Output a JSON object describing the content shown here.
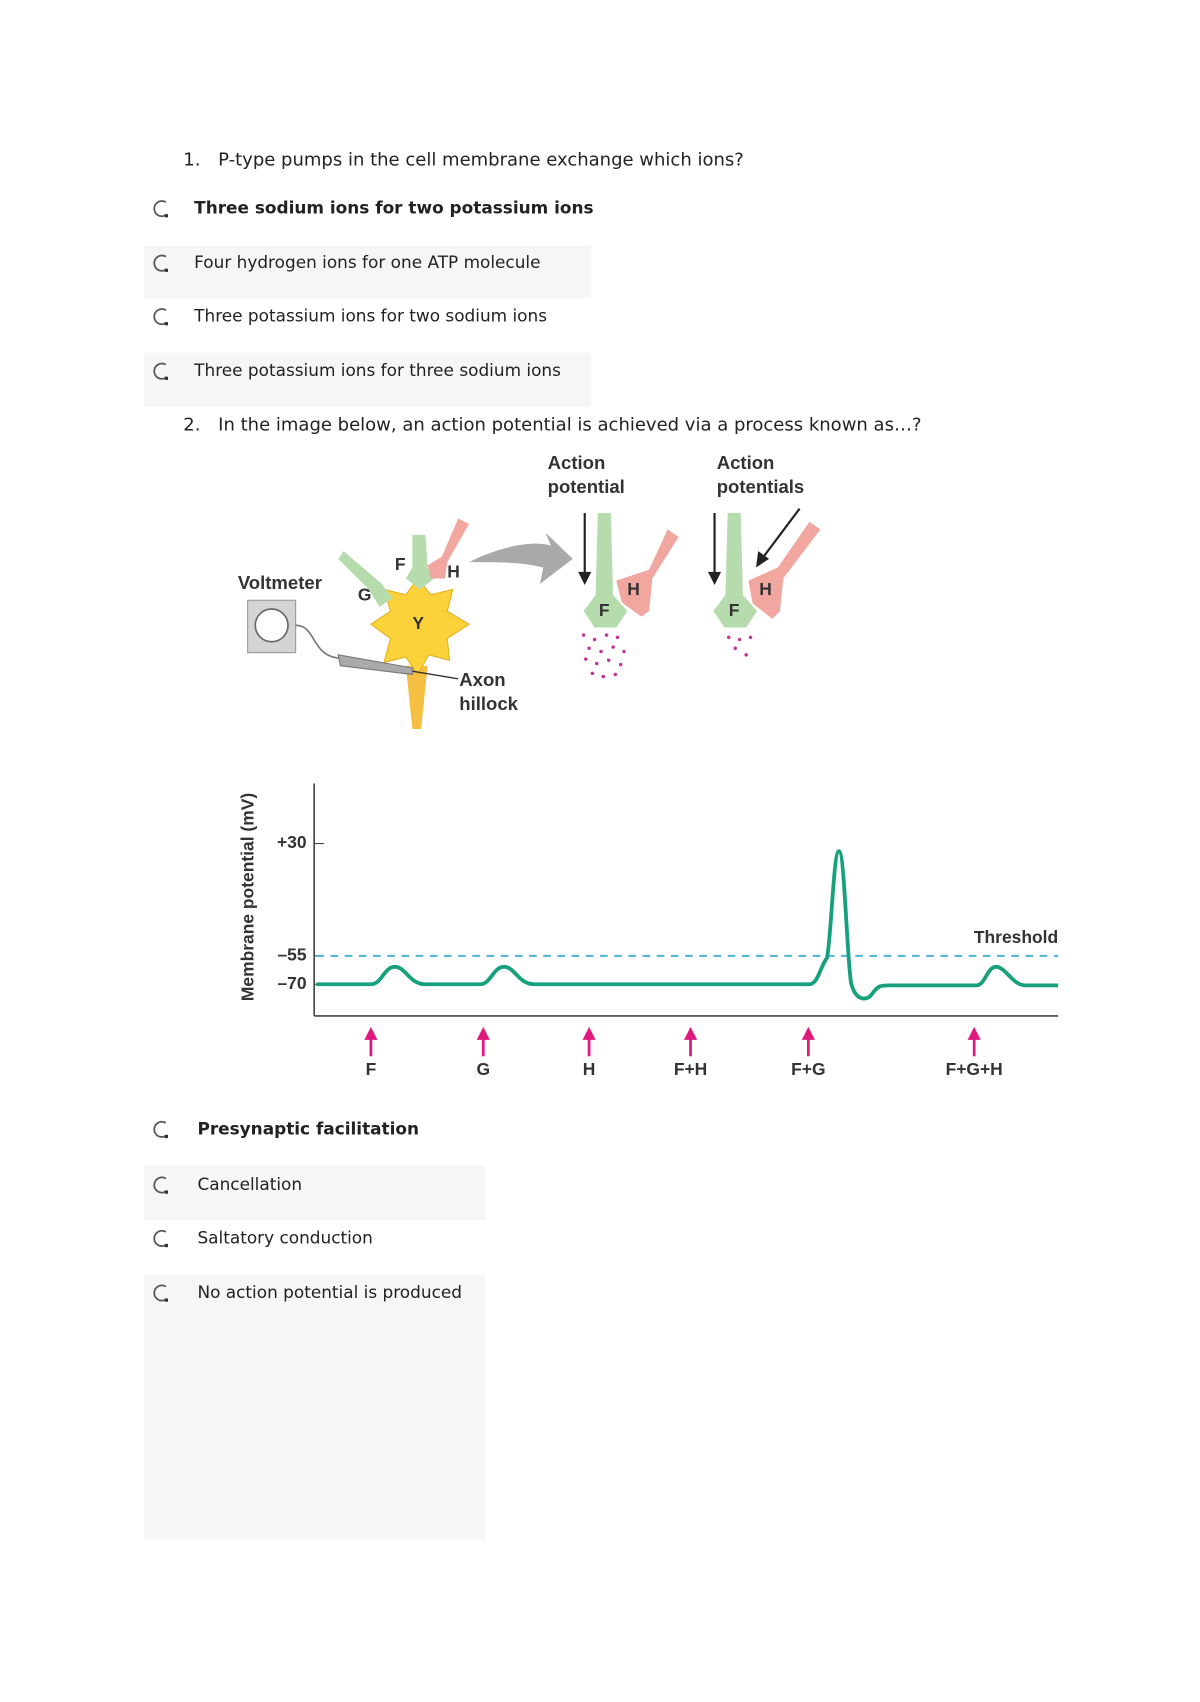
{
  "questions": [
    {
      "number": "1.",
      "text": "P-type pumps in the cell membrane exchange which ions?",
      "options": [
        "Three sodium ions for two potassium ions",
        "Four hydrogen ions for one ATP molecule",
        "Three potassium ions for two sodium ions",
        "Three potassium ions for three sodium ions"
      ]
    },
    {
      "number": "2.",
      "text": "In the image below, an action potential is achieved via a process known as…?",
      "options": [
        "Presynaptic facilitation",
        "Cancellation",
        "Saltatory conduction",
        "No action potential is produced"
      ]
    }
  ],
  "figure": {
    "diagram": {
      "panel_titles": [
        [
          "Action",
          "potential"
        ],
        [
          "Action",
          "potentials"
        ]
      ],
      "voltmeter": "Voltmeter",
      "neuron_labels": [
        "G",
        "F",
        "H",
        "Y"
      ],
      "axon_hillock": [
        "Axon",
        "hillock"
      ],
      "panel_labels": [
        "F",
        "H",
        "F",
        "H"
      ]
    },
    "graph": {
      "y_axis_label": "Membrane potential (mV)",
      "yticks": [
        "+30",
        "–55",
        "–70"
      ],
      "threshold_label": "Threshold",
      "stimuli": [
        "F",
        "G",
        "H",
        "F+H",
        "F+G",
        "F+G+H"
      ]
    }
  }
}
